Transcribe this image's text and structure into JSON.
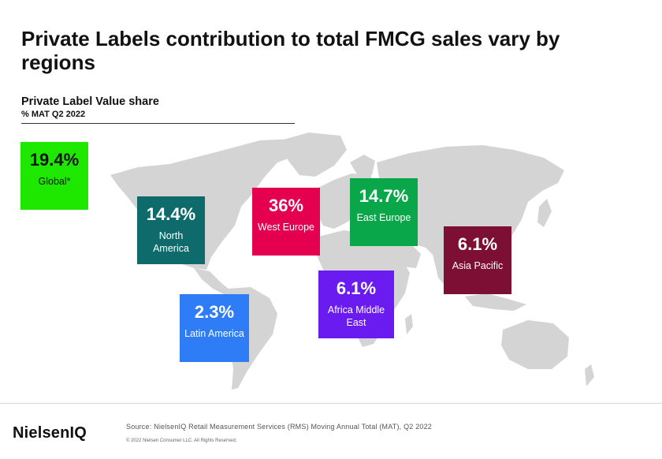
{
  "title": "Private Labels contribution to total FMCG sales vary by regions",
  "subtitle": "Private Label Value share",
  "subtitle2": "% MAT Q2 2022",
  "chart_data": {
    "type": "map-callouts",
    "title": "Private Labels contribution to total FMCG sales vary by regions",
    "metric": "Private Label Value share",
    "period": "% MAT Q2 2022",
    "regions": [
      {
        "name": "Global*",
        "value": 19.4,
        "display": "19.4%",
        "color": "#1ee800"
      },
      {
        "name": "North America",
        "value": 14.4,
        "display": "14.4%",
        "color": "#0f6b6b"
      },
      {
        "name": "West Europe",
        "value": 36,
        "display": "36%",
        "color": "#e4004f"
      },
      {
        "name": "East Europe",
        "value": 14.7,
        "display": "14.7%",
        "color": "#0aa64a"
      },
      {
        "name": "Asia Pacific",
        "value": 6.1,
        "display": "6.1%",
        "color": "#7d0f35"
      },
      {
        "name": "Africa Middle East",
        "value": 6.1,
        "display": "6.1%",
        "color": "#6a1cf0"
      },
      {
        "name": "Latin America",
        "value": 2.3,
        "display": "2.3%",
        "color": "#2f7df6"
      }
    ]
  },
  "labels": {
    "global": "Global*",
    "north_america": "North America",
    "west_europe": "West Europe",
    "east_europe": "East Europe",
    "asia_pacific": "Asia Pacific",
    "africa_me": "Africa Middle East",
    "latin_america": "Latin America"
  },
  "footer": {
    "brand": "NielsenIQ",
    "source": "Source: NielsenIQ Retail Measurement Services (RMS) Moving Annual Total (MAT), Q2 2022",
    "copyright": "© 2022 Nielsen Consumer LLC. All Rights Reserved."
  }
}
